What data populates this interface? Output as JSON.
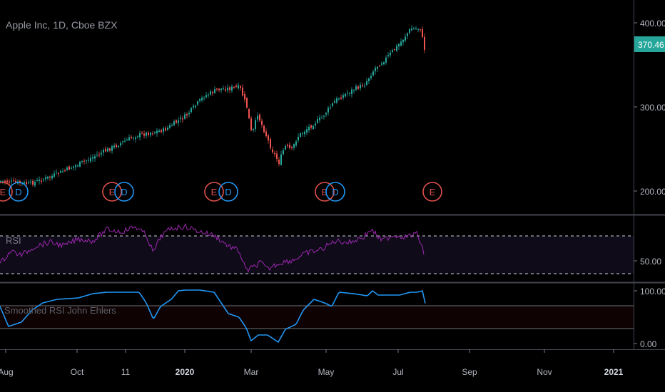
{
  "main_pane": {
    "symbol_title": "Apple Inc, 1D, Cboe BZX",
    "price_ticks": [
      "400.00",
      "300.00",
      "200.00"
    ],
    "last_price": "370.46",
    "last_price_color": "#26a69a",
    "candle_up_color": "#26a69a",
    "candle_down_color": "#ef5350",
    "earnings_badge": "E",
    "dividend_badge": "D",
    "earnings_color": "#e0514d",
    "dividend_color": "#2196f3"
  },
  "rsi_pane": {
    "label": "RSI",
    "tick": "50.00",
    "line_color": "#9c27b0"
  },
  "smoothed_pane": {
    "label": "Smoothed RSI John Ehlers",
    "ticks": [
      "100.00",
      "0.00"
    ],
    "line_color": "#2196f3"
  },
  "time_axis": {
    "labels": [
      "Aug",
      "Oct",
      "11",
      "2020",
      "Mar",
      "May",
      "Jul",
      "Sep",
      "Nov",
      "2021"
    ]
  }
}
